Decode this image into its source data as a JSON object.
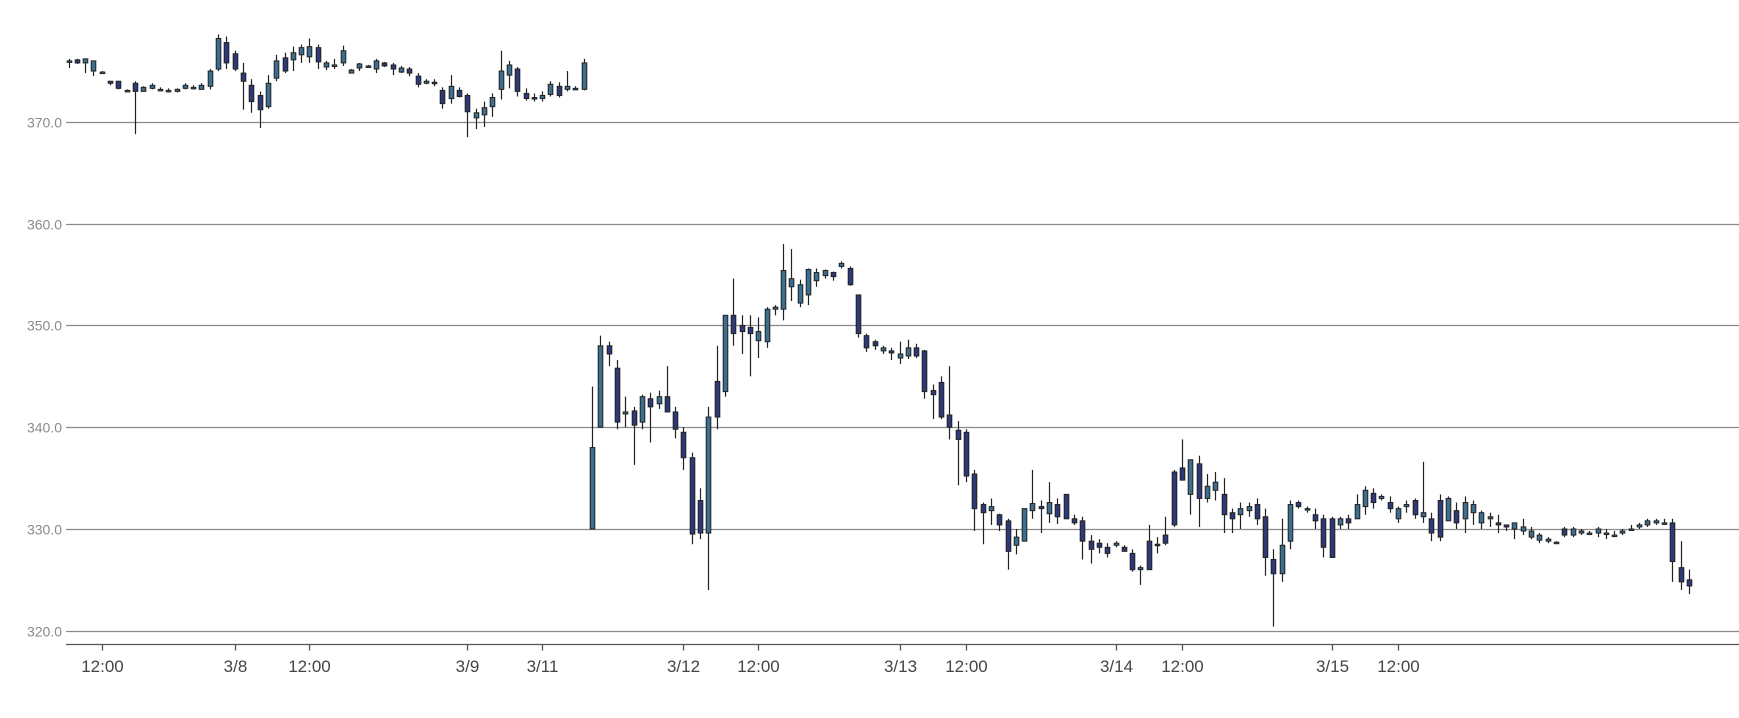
{
  "chart_data": {
    "type": "candlestick",
    "title": "",
    "xlabel": "",
    "ylabel": "",
    "ylim": [
      318.5,
      381.0
    ],
    "grid": true,
    "y_ticks": [
      "320.0",
      "330.0",
      "340.0",
      "350.0",
      "360.0",
      "370.0"
    ],
    "x_ticks": [
      {
        "label": "12:00",
        "slot": 4
      },
      {
        "label": "3/8",
        "slot": 20
      },
      {
        "label": "12:00",
        "slot": 29
      },
      {
        "label": "3/9",
        "slot": 48
      },
      {
        "label": "3/11",
        "slot": 57
      },
      {
        "label": "3/12",
        "slot": 74
      },
      {
        "label": "12:00",
        "slot": 83
      },
      {
        "label": "3/13",
        "slot": 100
      },
      {
        "label": "12:00",
        "slot": 108
      },
      {
        "label": "3/14",
        "slot": 126
      },
      {
        "label": "12:00",
        "slot": 134
      },
      {
        "label": "3/15",
        "slot": 152
      },
      {
        "label": "12:00",
        "slot": 160
      }
    ],
    "colors": {
      "up": "#3c6e8f",
      "down": "#2e3a78",
      "wick": "#222222",
      "grid": "#8a8a8a"
    },
    "candles": [
      [
        0,
        376.2,
        375.3,
        376.0,
        376.0
      ],
      [
        1,
        376.2,
        375.7,
        376.1,
        375.8
      ],
      [
        2,
        376.2,
        374.8,
        375.8,
        376.2
      ],
      [
        3,
        376.0,
        374.5,
        375.0,
        376.0
      ],
      [
        4,
        375.0,
        374.8,
        374.9,
        374.9
      ],
      [
        5,
        374.0,
        373.6,
        374.0,
        373.8
      ],
      [
        6,
        374.0,
        373.2,
        374.0,
        373.3
      ],
      [
        7,
        373.2,
        373.0,
        373.1,
        373.1
      ],
      [
        8,
        374.0,
        368.8,
        373.8,
        373.0
      ],
      [
        9,
        373.5,
        373.0,
        373.0,
        373.4
      ],
      [
        10,
        373.8,
        373.2,
        373.3,
        373.6
      ],
      [
        11,
        373.4,
        373.0,
        373.2,
        373.2
      ],
      [
        12,
        373.3,
        372.9,
        373.0,
        373.1
      ],
      [
        13,
        373.3,
        372.9,
        373.0,
        373.2
      ],
      [
        14,
        373.8,
        373.2,
        373.3,
        373.6
      ],
      [
        15,
        373.6,
        373.2,
        373.4,
        373.4
      ],
      [
        16,
        373.8,
        373.2,
        373.2,
        373.6
      ],
      [
        17,
        375.2,
        373.2,
        373.5,
        375.0
      ],
      [
        18,
        378.6,
        375.0,
        375.2,
        378.2
      ],
      [
        19,
        378.4,
        375.2,
        377.8,
        375.8
      ],
      [
        20,
        377.0,
        375.0,
        376.7,
        375.2
      ],
      [
        21,
        375.8,
        371.2,
        374.8,
        374.0
      ],
      [
        22,
        374.2,
        370.9,
        373.6,
        372.0
      ],
      [
        23,
        373.0,
        369.4,
        372.6,
        371.2
      ],
      [
        24,
        374.6,
        371.3,
        371.5,
        373.8
      ],
      [
        25,
        376.6,
        374.0,
        374.3,
        376.0
      ],
      [
        26,
        376.8,
        374.8,
        376.3,
        375.0
      ],
      [
        27,
        377.4,
        375.0,
        376.1,
        376.8
      ],
      [
        28,
        377.6,
        375.8,
        376.6,
        377.3
      ],
      [
        29,
        378.2,
        375.8,
        376.4,
        377.4
      ],
      [
        30,
        377.6,
        375.2,
        377.3,
        375.9
      ],
      [
        31,
        376.0,
        375.1,
        375.4,
        375.8
      ],
      [
        32,
        376.2,
        375.2,
        375.6,
        375.6
      ],
      [
        33,
        377.5,
        375.5,
        375.8,
        377.0
      ],
      [
        34,
        375.2,
        374.8,
        374.8,
        375.1
      ],
      [
        35,
        375.8,
        375.0,
        375.3,
        375.7
      ],
      [
        36,
        375.6,
        375.4,
        375.5,
        375.5
      ],
      [
        37,
        376.2,
        374.8,
        375.2,
        376.0
      ],
      [
        38,
        375.9,
        375.4,
        375.8,
        375.5
      ],
      [
        39,
        375.8,
        374.6,
        375.6,
        375.2
      ],
      [
        40,
        375.5,
        374.8,
        374.9,
        375.3
      ],
      [
        41,
        375.4,
        374.5,
        375.2,
        374.8
      ],
      [
        42,
        374.8,
        373.4,
        374.5,
        373.7
      ],
      [
        43,
        374.2,
        373.7,
        373.8,
        374.0
      ],
      [
        44,
        374.2,
        373.5,
        373.9,
        373.8
      ],
      [
        45,
        373.4,
        371.3,
        373.1,
        371.8
      ],
      [
        46,
        374.6,
        371.8,
        372.3,
        373.5
      ],
      [
        47,
        373.4,
        372.4,
        373.1,
        372.5
      ],
      [
        48,
        372.8,
        368.5,
        372.6,
        371.0
      ],
      [
        49,
        371.3,
        369.3,
        370.4,
        370.9
      ],
      [
        50,
        372.0,
        369.5,
        370.7,
        371.4
      ],
      [
        51,
        372.8,
        370.5,
        371.5,
        372.4
      ],
      [
        52,
        377.0,
        372.2,
        373.2,
        375.0
      ],
      [
        53,
        376.0,
        373.3,
        374.6,
        375.6
      ],
      [
        54,
        375.4,
        372.5,
        375.2,
        373.0
      ],
      [
        55,
        373.3,
        372.1,
        372.8,
        372.3
      ],
      [
        56,
        372.8,
        372.0,
        372.4,
        372.3
      ],
      [
        57,
        373.0,
        372.0,
        372.3,
        372.6
      ],
      [
        58,
        374.0,
        372.5,
        372.7,
        373.7
      ],
      [
        59,
        373.9,
        372.4,
        373.5,
        372.6
      ],
      [
        60,
        375.0,
        373.0,
        373.2,
        373.5
      ],
      [
        61,
        373.5,
        373.2,
        373.3,
        373.3
      ],
      [
        62,
        376.2,
        373.1,
        373.2,
        375.8
      ],
      [
        63,
        344.0,
        330.0,
        330.0,
        338.0
      ],
      [
        64,
        349.0,
        340.0,
        340.0,
        348.0
      ],
      [
        65,
        348.4,
        346.0,
        348.0,
        347.2
      ],
      [
        66,
        346.6,
        339.8,
        345.8,
        340.5
      ],
      [
        67,
        343.0,
        340.0,
        341.3,
        341.5
      ],
      [
        68,
        342.0,
        336.3,
        341.6,
        340.2
      ],
      [
        69,
        343.2,
        339.8,
        340.5,
        343.0
      ],
      [
        70,
        343.4,
        338.5,
        342.8,
        342.0
      ],
      [
        71,
        343.6,
        341.8,
        342.3,
        343.0
      ],
      [
        72,
        346.0,
        341.6,
        343.0,
        341.5
      ],
      [
        73,
        342.0,
        338.9,
        341.5,
        339.8
      ],
      [
        74,
        340.0,
        335.8,
        339.5,
        337.0
      ],
      [
        75,
        337.5,
        328.5,
        337.0,
        329.5
      ],
      [
        76,
        334.0,
        329.0,
        332.8,
        329.6
      ],
      [
        77,
        342.0,
        324.0,
        329.6,
        341.0
      ],
      [
        78,
        348.0,
        339.8,
        344.5,
        341.0
      ],
      [
        79,
        351.0,
        343.0,
        343.5,
        351.0
      ],
      [
        80,
        354.6,
        348.0,
        351.0,
        349.2
      ],
      [
        81,
        351.0,
        347.2,
        350.0,
        349.4
      ],
      [
        82,
        351.0,
        345.0,
        349.8,
        349.2
      ],
      [
        83,
        350.8,
        346.8,
        348.5,
        349.4
      ],
      [
        84,
        351.8,
        347.8,
        348.4,
        351.6
      ],
      [
        85,
        352.0,
        351.0,
        351.6,
        351.8
      ],
      [
        86,
        358.0,
        350.5,
        351.6,
        355.4
      ],
      [
        87,
        357.5,
        352.4,
        353.8,
        354.6
      ],
      [
        88,
        354.5,
        351.8,
        352.2,
        354.0
      ],
      [
        89,
        355.6,
        352.0,
        353.0,
        355.5
      ],
      [
        90,
        355.6,
        353.8,
        354.4,
        355.2
      ],
      [
        91,
        355.5,
        354.6,
        354.9,
        355.4
      ],
      [
        92,
        355.3,
        354.4,
        355.2,
        354.8
      ],
      [
        93,
        356.3,
        355.6,
        355.8,
        356.1
      ],
      [
        94,
        355.8,
        353.9,
        355.6,
        354.0
      ],
      [
        95,
        353.0,
        348.8,
        353.0,
        349.2
      ],
      [
        96,
        349.2,
        347.4,
        349.0,
        347.8
      ],
      [
        97,
        348.6,
        347.6,
        348.4,
        348.0
      ],
      [
        98,
        348.0,
        347.2,
        347.5,
        347.8
      ],
      [
        99,
        347.8,
        346.6,
        347.5,
        347.3
      ],
      [
        100,
        348.4,
        346.2,
        346.8,
        347.2
      ],
      [
        101,
        348.6,
        346.7,
        347.0,
        347.8
      ],
      [
        102,
        348.2,
        346.8,
        347.8,
        347.0
      ],
      [
        103,
        347.6,
        342.8,
        347.5,
        343.5
      ],
      [
        104,
        344.2,
        340.8,
        343.6,
        343.2
      ],
      [
        105,
        345.0,
        340.8,
        344.4,
        341.0
      ],
      [
        106,
        346.0,
        338.8,
        341.2,
        340.0
      ],
      [
        107,
        340.6,
        334.3,
        339.7,
        338.8
      ],
      [
        108,
        339.8,
        334.6,
        339.5,
        335.2
      ],
      [
        109,
        335.8,
        329.8,
        335.4,
        332.0
      ],
      [
        110,
        332.6,
        328.5,
        332.4,
        331.6
      ],
      [
        111,
        333.0,
        330.4,
        331.8,
        332.2
      ],
      [
        112,
        331.5,
        329.8,
        331.4,
        330.4
      ],
      [
        113,
        331.0,
        326.0,
        330.8,
        327.8
      ],
      [
        114,
        330.0,
        327.5,
        328.4,
        329.2
      ],
      [
        115,
        332.0,
        328.8,
        328.8,
        332.0
      ],
      [
        116,
        335.8,
        331.0,
        331.8,
        332.5
      ],
      [
        117,
        332.8,
        329.6,
        332.2,
        332.0
      ],
      [
        118,
        334.6,
        330.6,
        331.5,
        332.6
      ],
      [
        119,
        333.0,
        330.5,
        332.4,
        331.2
      ],
      [
        120,
        333.4,
        331.0,
        333.4,
        331.0
      ],
      [
        121,
        331.4,
        330.4,
        331.0,
        330.6
      ],
      [
        122,
        331.2,
        327.0,
        330.8,
        328.8
      ],
      [
        123,
        329.4,
        326.6,
        328.8,
        328.0
      ],
      [
        124,
        329.0,
        327.6,
        328.6,
        328.2
      ],
      [
        125,
        328.6,
        327.2,
        328.2,
        327.6
      ],
      [
        126,
        328.8,
        328.2,
        328.4,
        328.6
      ],
      [
        127,
        328.4,
        327.8,
        328.2,
        327.8
      ],
      [
        128,
        328.0,
        325.8,
        327.6,
        326.0
      ],
      [
        129,
        326.4,
        324.5,
        326.0,
        326.2
      ],
      [
        130,
        330.4,
        326.0,
        328.8,
        326.0
      ],
      [
        131,
        329.2,
        327.6,
        328.5,
        328.4
      ],
      [
        132,
        331.2,
        328.4,
        329.4,
        328.6
      ],
      [
        133,
        335.8,
        330.2,
        335.6,
        330.4
      ],
      [
        134,
        338.8,
        334.8,
        336.0,
        334.8
      ],
      [
        135,
        336.8,
        331.4,
        333.4,
        336.8
      ],
      [
        136,
        337.2,
        330.2,
        336.4,
        333.0
      ],
      [
        137,
        335.4,
        332.6,
        333.0,
        334.2
      ],
      [
        138,
        335.6,
        332.8,
        333.8,
        334.6
      ],
      [
        139,
        335.0,
        329.6,
        333.4,
        331.4
      ],
      [
        140,
        332.0,
        329.6,
        331.6,
        331.0
      ],
      [
        141,
        332.6,
        330.0,
        331.4,
        332.0
      ],
      [
        142,
        332.6,
        331.2,
        331.8,
        332.2
      ],
      [
        143,
        333.0,
        330.4,
        332.4,
        331.0
      ],
      [
        144,
        332.0,
        325.4,
        331.2,
        327.2
      ],
      [
        145,
        328.0,
        320.4,
        327.0,
        325.6
      ],
      [
        146,
        331.0,
        324.8,
        325.6,
        328.4
      ],
      [
        147,
        332.8,
        328.0,
        328.8,
        332.4
      ],
      [
        148,
        332.8,
        332.0,
        332.6,
        332.2
      ],
      [
        149,
        332.2,
        331.6,
        331.9,
        332.0
      ],
      [
        150,
        332.0,
        330.0,
        331.4,
        330.8
      ],
      [
        151,
        331.4,
        327.2,
        331.0,
        328.2
      ],
      [
        152,
        331.2,
        327.2,
        331.0,
        327.2
      ],
      [
        153,
        331.2,
        330.0,
        330.4,
        331.0
      ],
      [
        154,
        331.4,
        330.0,
        331.0,
        330.6
      ],
      [
        155,
        333.4,
        331.0,
        331.0,
        332.4
      ],
      [
        156,
        334.2,
        331.4,
        332.2,
        333.8
      ],
      [
        157,
        334.0,
        332.0,
        333.5,
        332.6
      ],
      [
        158,
        333.4,
        332.8,
        333.0,
        333.2
      ],
      [
        159,
        333.2,
        331.6,
        332.6,
        332.0
      ],
      [
        160,
        332.2,
        330.6,
        331.0,
        332.0
      ],
      [
        161,
        332.8,
        331.6,
        332.2,
        332.4
      ],
      [
        162,
        333.0,
        331.0,
        332.8,
        331.4
      ],
      [
        163,
        336.6,
        330.6,
        331.2,
        331.6
      ],
      [
        164,
        331.6,
        328.8,
        331.0,
        329.6
      ],
      [
        165,
        333.4,
        328.8,
        332.8,
        329.2
      ],
      [
        166,
        333.2,
        330.8,
        330.8,
        333.0
      ],
      [
        167,
        332.6,
        330.0,
        331.8,
        330.6
      ],
      [
        168,
        333.2,
        329.6,
        331.0,
        332.6
      ],
      [
        169,
        332.8,
        330.4,
        331.6,
        332.4
      ],
      [
        170,
        331.8,
        330.0,
        330.6,
        331.6
      ],
      [
        171,
        331.6,
        330.2,
        331.0,
        331.2
      ],
      [
        172,
        331.4,
        329.6,
        330.6,
        330.4
      ],
      [
        173,
        330.4,
        329.8,
        330.4,
        330.2
      ],
      [
        174,
        330.6,
        329.0,
        330.0,
        330.6
      ],
      [
        175,
        331.0,
        329.4,
        329.8,
        330.2
      ],
      [
        176,
        330.2,
        329.0,
        329.2,
        329.8
      ],
      [
        177,
        329.6,
        328.6,
        328.9,
        329.4
      ],
      [
        178,
        329.2,
        328.6,
        328.8,
        329.0
      ],
      [
        179,
        328.8,
        328.6,
        328.7,
        328.7
      ],
      [
        180,
        330.2,
        329.2,
        330.0,
        329.4
      ],
      [
        181,
        330.2,
        329.2,
        329.4,
        330.0
      ],
      [
        182,
        330.0,
        329.4,
        329.6,
        329.8
      ],
      [
        183,
        329.8,
        329.4,
        329.6,
        329.6
      ],
      [
        184,
        330.2,
        329.2,
        329.6,
        330.0
      ],
      [
        185,
        330.0,
        329.0,
        329.6,
        329.6
      ],
      [
        186,
        329.8,
        329.2,
        329.4,
        329.4
      ],
      [
        187,
        330.0,
        329.4,
        329.6,
        329.8
      ],
      [
        188,
        330.4,
        329.8,
        330.0,
        330.0
      ],
      [
        189,
        330.6,
        330.0,
        330.2,
        330.4
      ],
      [
        190,
        331.0,
        330.2,
        330.4,
        330.8
      ],
      [
        191,
        331.0,
        330.4,
        330.6,
        330.8
      ],
      [
        192,
        331.0,
        330.4,
        330.6,
        330.6
      ],
      [
        193,
        331.0,
        324.8,
        330.6,
        326.8
      ],
      [
        194,
        328.8,
        324.0,
        326.2,
        324.8
      ],
      [
        195,
        326.0,
        323.6,
        325.0,
        324.4
      ]
    ]
  }
}
